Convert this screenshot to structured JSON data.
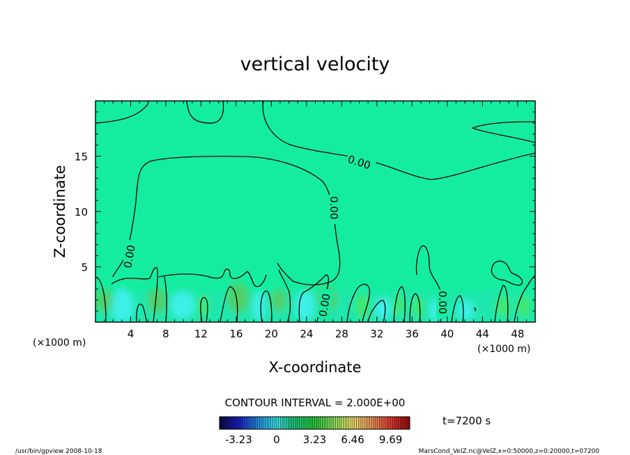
{
  "chart_data": {
    "type": "heatmap",
    "title": "vertical velocity",
    "xlabel": "X-coordinate",
    "ylabel": "Z-coordinate",
    "x_unit": "(×1000 m)",
    "y_unit": "(×1000 m)",
    "xlim": [
      0,
      50
    ],
    "ylim": [
      0,
      20
    ],
    "x_ticks": [
      "4",
      "8",
      "12",
      "16",
      "20",
      "24",
      "28",
      "32",
      "36",
      "40",
      "44",
      "48"
    ],
    "x_tick_values": [
      4,
      8,
      12,
      16,
      20,
      24,
      28,
      32,
      36,
      40,
      44,
      48
    ],
    "y_ticks": [
      "5",
      "10",
      "15"
    ],
    "y_tick_values": [
      5,
      10,
      15
    ],
    "contour_label": "0.00",
    "contour_interval_text": "CONTOUR INTERVAL = 2.000E+00",
    "time_text": "t=7200 s",
    "colorbar_tick_labels": [
      "-3.23",
      "0",
      "3.23",
      "6.46",
      "9.69"
    ],
    "colorbar_tick_values": [
      -3.23,
      0,
      3.23,
      6.46,
      9.69
    ],
    "colorbar_range": [
      -4.85,
      11.31
    ],
    "colors": {
      "background_field": "#14eda0",
      "contour": "#000000"
    }
  },
  "footer": {
    "left": "/usr/bin/gpview  2008-10-18",
    "right": "MarsCond_VelZ.nc@VelZ,x=0:50000,z=0:20000,t=07200"
  }
}
